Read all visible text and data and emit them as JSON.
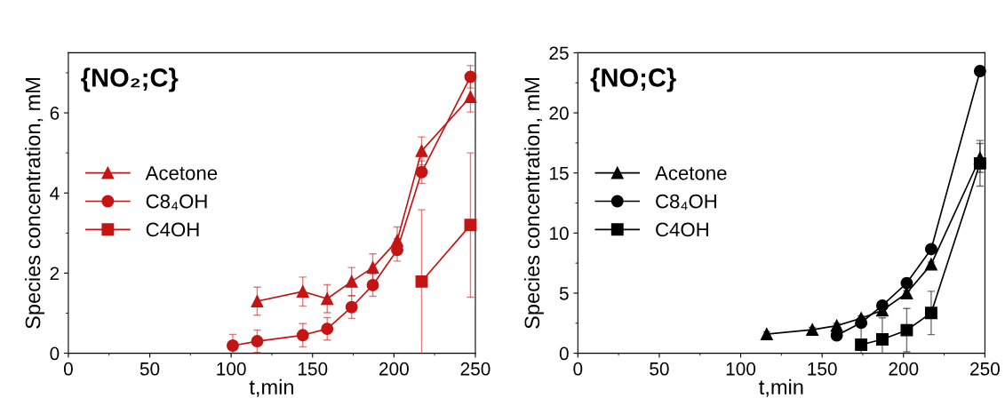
{
  "chart_data": [
    {
      "type": "line",
      "title": "{NO₂;C}",
      "xlabel": "t,min",
      "ylabel": "Species concentration, mM",
      "xlim": [
        0,
        250
      ],
      "xticks": [
        0,
        50,
        100,
        150,
        200,
        250
      ],
      "ylim": [
        0,
        7.5
      ],
      "yticks": [
        0,
        2,
        4,
        6
      ],
      "grid": false,
      "legend": "left",
      "line_style": "solid",
      "series": [
        {
          "name": "Acetone",
          "color": "#c41414",
          "marker": "triangle",
          "x": [
            116,
            144,
            159,
            174,
            187,
            202,
            217,
            247
          ],
          "values": [
            1.3,
            1.54,
            1.36,
            1.79,
            2.14,
            2.81,
            5.05,
            6.4
          ],
          "errors": [
            0.35,
            0.36,
            0.35,
            0.35,
            0.34,
            0.34,
            0.35,
            0.38
          ]
        },
        {
          "name": "C8₄OH",
          "color": "#c41414",
          "marker": "circle",
          "x": [
            101,
            116,
            144,
            159,
            174,
            187,
            202,
            217,
            247
          ],
          "values": [
            0.19,
            0.3,
            0.45,
            0.61,
            1.15,
            1.7,
            2.58,
            4.52,
            6.9
          ],
          "errors": [
            0.28,
            0.28,
            0.29,
            0.28,
            0.28,
            0.28,
            0.28,
            0.28,
            0.28
          ]
        },
        {
          "name": "C4OH",
          "color": "#c41414",
          "marker": "square",
          "x": [
            217,
            247
          ],
          "values": [
            1.79,
            3.2
          ],
          "errors": [
            1.79,
            1.8
          ]
        }
      ]
    },
    {
      "type": "line",
      "title": "{NO;C}",
      "xlabel": "t,min",
      "ylabel": "Species concentration, mM",
      "xlim": [
        0,
        250
      ],
      "xticks": [
        0,
        50,
        100,
        150,
        200,
        250
      ],
      "ylim": [
        0,
        25
      ],
      "yticks": [
        0,
        5,
        10,
        15,
        20,
        25
      ],
      "grid": false,
      "legend": "left",
      "line_style": "solid",
      "series": [
        {
          "name": "Acetone",
          "color": "#000000",
          "marker": "triangle",
          "x": [
            116,
            144,
            159,
            174,
            187,
            202,
            217,
            247
          ],
          "values": [
            1.59,
            1.96,
            2.29,
            2.91,
            3.57,
            5.0,
            7.39,
            16.25
          ],
          "errors": [
            0.2,
            0.2,
            0.2,
            0.2,
            0.2,
            0.2,
            0.2,
            1.2
          ]
        },
        {
          "name": "C8₄OH",
          "color": "#000000",
          "marker": "circle",
          "x": [
            159,
            174,
            187,
            202,
            217,
            247
          ],
          "values": [
            1.48,
            2.54,
            3.97,
            5.84,
            8.66,
            23.48
          ]
        },
        {
          "name": "C4OH",
          "color": "#000000",
          "marker": "square",
          "x": [
            174,
            187,
            202,
            217,
            247
          ],
          "values": [
            0.71,
            1.15,
            1.92,
            3.35,
            15.8
          ],
          "errors": [
            1.9,
            1.8,
            1.8,
            1.8,
            1.9
          ]
        }
      ]
    }
  ]
}
